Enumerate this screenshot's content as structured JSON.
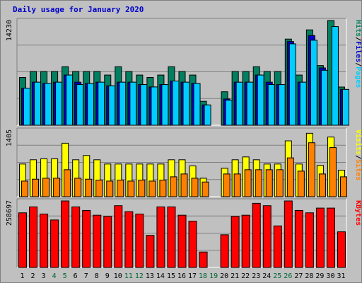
{
  "chart_data": {
    "type": "bar",
    "title": "Daily usage for January 2020",
    "categories": [
      "1",
      "2",
      "3",
      "4",
      "5",
      "6",
      "7",
      "8",
      "9",
      "10",
      "11",
      "12",
      "13",
      "14",
      "15",
      "16",
      "17",
      "18",
      "19",
      "20",
      "21",
      "22",
      "23",
      "24",
      "25",
      "26",
      "27",
      "28",
      "29",
      "30",
      "31"
    ],
    "weekend_days": [
      "4",
      "5",
      "11",
      "12",
      "18",
      "19",
      "25",
      "26"
    ],
    "weekend_label_color": "#006633",
    "panels": [
      {
        "max_label": "14230",
        "ymax": 14230,
        "series": [
          {
            "name": "Hits",
            "color": "#008060",
            "values": [
              6490,
              7300,
              7300,
              7300,
              7950,
              7300,
              7300,
              7300,
              6820,
              7950,
              7300,
              6820,
              6490,
              6820,
              7950,
              7300,
              6820,
              3250,
              null,
              4550,
              7300,
              7300,
              7950,
              7300,
              7300,
              11710,
              6820,
              12960,
              8110,
              14230,
              5190
            ]
          },
          {
            "name": "Files",
            "color": "#0000cc",
            "values": [
              5030,
              5850,
              5680,
              5850,
              6820,
              5850,
              5680,
              5850,
              5360,
              5850,
              5850,
              5520,
              5200,
              5520,
              6010,
              5850,
              5680,
              2760,
              null,
              3570,
              5850,
              5850,
              6820,
              5850,
              5520,
              11380,
              5850,
              12200,
              7790,
              null,
              4870
            ]
          },
          {
            "name": "Pages",
            "color": "#00ccff",
            "values": [
              5030,
              5850,
              5680,
              5850,
              6820,
              5530,
              5680,
              5850,
              5360,
              5850,
              5850,
              5520,
              5200,
              5520,
              6010,
              5850,
              5680,
              2760,
              null,
              3410,
              5850,
              5850,
              6820,
              5530,
              5520,
              11060,
              5850,
              11550,
              7470,
              13410,
              4870
            ]
          }
        ],
        "legend": [
          {
            "text": "Pages",
            "color": "#00ccff"
          },
          {
            "text": "/",
            "color": "#000000"
          },
          {
            "text": "Files",
            "color": "#0000cc"
          },
          {
            "text": "/",
            "color": "#000000"
          },
          {
            "text": "Hits",
            "color": "#008060"
          }
        ]
      },
      {
        "max_label": "1405",
        "ymax": 1405,
        "series": [
          {
            "name": "Visits",
            "color": "#ffff00",
            "values": [
              690,
              780,
              800,
              800,
              1130,
              780,
              870,
              780,
              690,
              690,
              690,
              690,
              690,
              690,
              780,
              780,
              650,
              390,
              null,
              600,
              780,
              840,
              780,
              690,
              690,
              1180,
              690,
              1340,
              660,
              1260,
              560
            ]
          },
          {
            "name": "Sites",
            "color": "#ff8000",
            "values": [
              330,
              370,
              390,
              390,
              570,
              390,
              370,
              350,
              330,
              350,
              330,
              350,
              330,
              350,
              420,
              480,
              390,
              310,
              null,
              480,
              480,
              570,
              570,
              570,
              570,
              820,
              540,
              1140,
              480,
              1040,
              420
            ]
          }
        ],
        "legend": [
          {
            "text": "Sites",
            "color": "#ff8000"
          },
          {
            "text": "/",
            "color": "#000000"
          },
          {
            "text": "Visits",
            "color": "#ffff00"
          }
        ]
      },
      {
        "max_label": "258697",
        "ymax": 258697,
        "series": [
          {
            "name": "KBytes",
            "color": "#ff0000",
            "values": [
              212500,
              235600,
              207800,
              184700,
              258697,
              235600,
              221700,
              203200,
              198600,
              240200,
              217100,
              207800,
              124700,
              235600,
              235600,
              203200,
              180100,
              60000,
              null,
              127000,
              198600,
              203200,
              249400,
              240200,
              161600,
              258697,
              221700,
              212500,
              230900,
              230900,
              138600
            ]
          }
        ],
        "legend": [
          {
            "text": "KBytes",
            "color": "#ff0000"
          }
        ]
      }
    ]
  }
}
